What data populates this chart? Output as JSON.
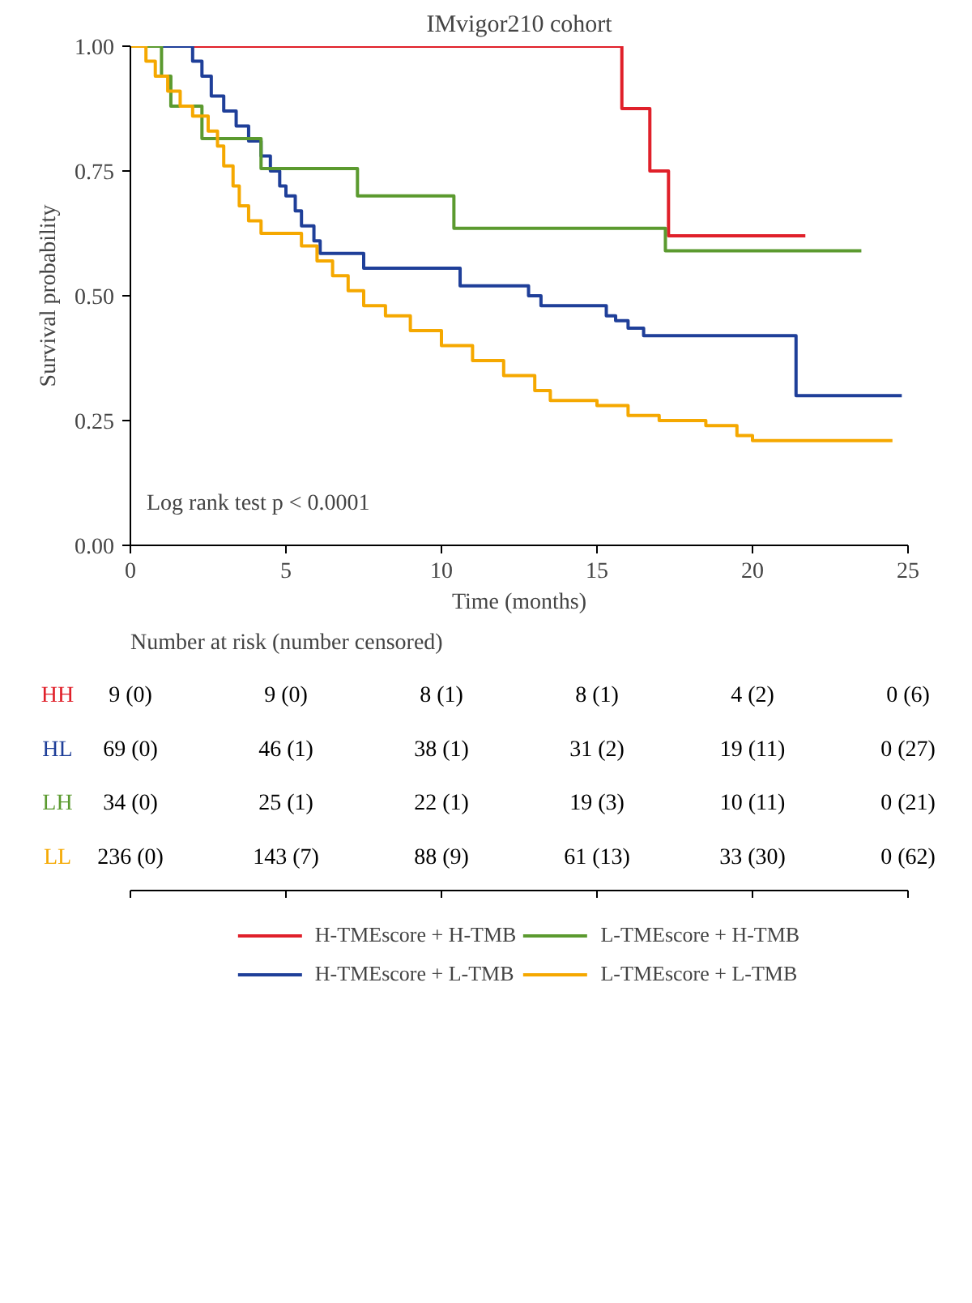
{
  "chart_data": [
    {
      "type": "step",
      "title": "IMvigor210 cohort",
      "xlabel": "Time (months)",
      "ylabel": "Survival probability",
      "xlim": [
        0,
        25
      ],
      "ylim": [
        0,
        1
      ],
      "xticks": [
        0,
        5,
        10,
        15,
        20,
        25
      ],
      "yticks": [
        {
          "value": 0,
          "label": "0.00"
        },
        {
          "value": 0.25,
          "label": "0.25"
        },
        {
          "value": 0.5,
          "label": "0.50"
        },
        {
          "value": 0.75,
          "label": "0.75"
        },
        {
          "value": 1,
          "label": "1.00"
        }
      ],
      "grid": false,
      "legend": "bottom",
      "line_style": "solid",
      "annotations": [
        {
          "text": "Log rank test p < 0.0001"
        }
      ],
      "series": [
        {
          "name": "H-TMEscore + H-TMB",
          "color": "#e0202a",
          "x": [
            0,
            15.8,
            16.7,
            17.3,
            21.7
          ],
          "values": [
            1,
            0.875,
            0.75,
            0.62,
            0.62
          ]
        },
        {
          "name": "H-TMEscore + L-TMB",
          "color": "#1f3f99",
          "x": [
            0,
            2.0,
            2.3,
            2.6,
            3.0,
            3.4,
            3.8,
            4.2,
            4.5,
            4.8,
            5.0,
            5.3,
            5.5,
            5.9,
            6.1,
            7.5,
            10.6,
            12.8,
            13.2,
            15.3,
            15.6,
            16.0,
            16.5,
            21.4,
            24.8
          ],
          "values": [
            1,
            0.97,
            0.94,
            0.9,
            0.87,
            0.84,
            0.81,
            0.78,
            0.75,
            0.72,
            0.7,
            0.67,
            0.64,
            0.61,
            0.585,
            0.555,
            0.52,
            0.5,
            0.48,
            0.46,
            0.45,
            0.435,
            0.42,
            0.3,
            0.3
          ]
        },
        {
          "name": "L-TMEscore + H-TMB",
          "color": "#5b9a2f",
          "x": [
            0,
            1.0,
            1.3,
            2.3,
            4.2,
            7.3,
            10.4,
            17.2,
            23.5
          ],
          "values": [
            1,
            0.94,
            0.88,
            0.815,
            0.755,
            0.7,
            0.635,
            0.59,
            0.59
          ]
        },
        {
          "name": "L-TMEscore + L-TMB",
          "color": "#f5a800",
          "x": [
            0,
            0.5,
            0.8,
            1.2,
            1.6,
            2.0,
            2.5,
            2.8,
            3.0,
            3.3,
            3.5,
            3.8,
            4.2,
            5.5,
            6.0,
            6.5,
            7.0,
            7.5,
            8.2,
            9.0,
            10.0,
            11.0,
            12.0,
            13.0,
            13.5,
            15.0,
            16.0,
            17.0,
            18.5,
            19.5,
            20.0,
            24.5
          ],
          "values": [
            1,
            0.97,
            0.94,
            0.91,
            0.88,
            0.86,
            0.83,
            0.8,
            0.76,
            0.72,
            0.68,
            0.65,
            0.625,
            0.6,
            0.57,
            0.54,
            0.51,
            0.48,
            0.46,
            0.43,
            0.4,
            0.37,
            0.34,
            0.31,
            0.29,
            0.28,
            0.26,
            0.25,
            0.24,
            0.22,
            0.21,
            0.21
          ]
        }
      ]
    },
    {
      "type": "other",
      "title": "Number at risk (number censored)",
      "y_categories": [
        "HH",
        "HL",
        "LH",
        "LL"
      ],
      "colors": [
        "#e0202a",
        "#1f3f99",
        "#5b9a2f",
        "#f5a800"
      ],
      "cell_labels": [
        [
          "9 (0)",
          "9 (0)",
          "8 (1)",
          "8 (1)",
          "4 (2)",
          "0 (6)"
        ],
        [
          "69 (0)",
          "46 (1)",
          "38 (1)",
          "31 (2)",
          "19 (11)",
          "0 (27)"
        ],
        [
          "34 (0)",
          "25 (1)",
          "22 (1)",
          "19 (3)",
          "10 (11)",
          "0 (21)"
        ],
        [
          "236 (0)",
          "143 (7)",
          "88 (9)",
          "61 (13)",
          "33 (30)",
          "0 (62)"
        ]
      ]
    }
  ]
}
